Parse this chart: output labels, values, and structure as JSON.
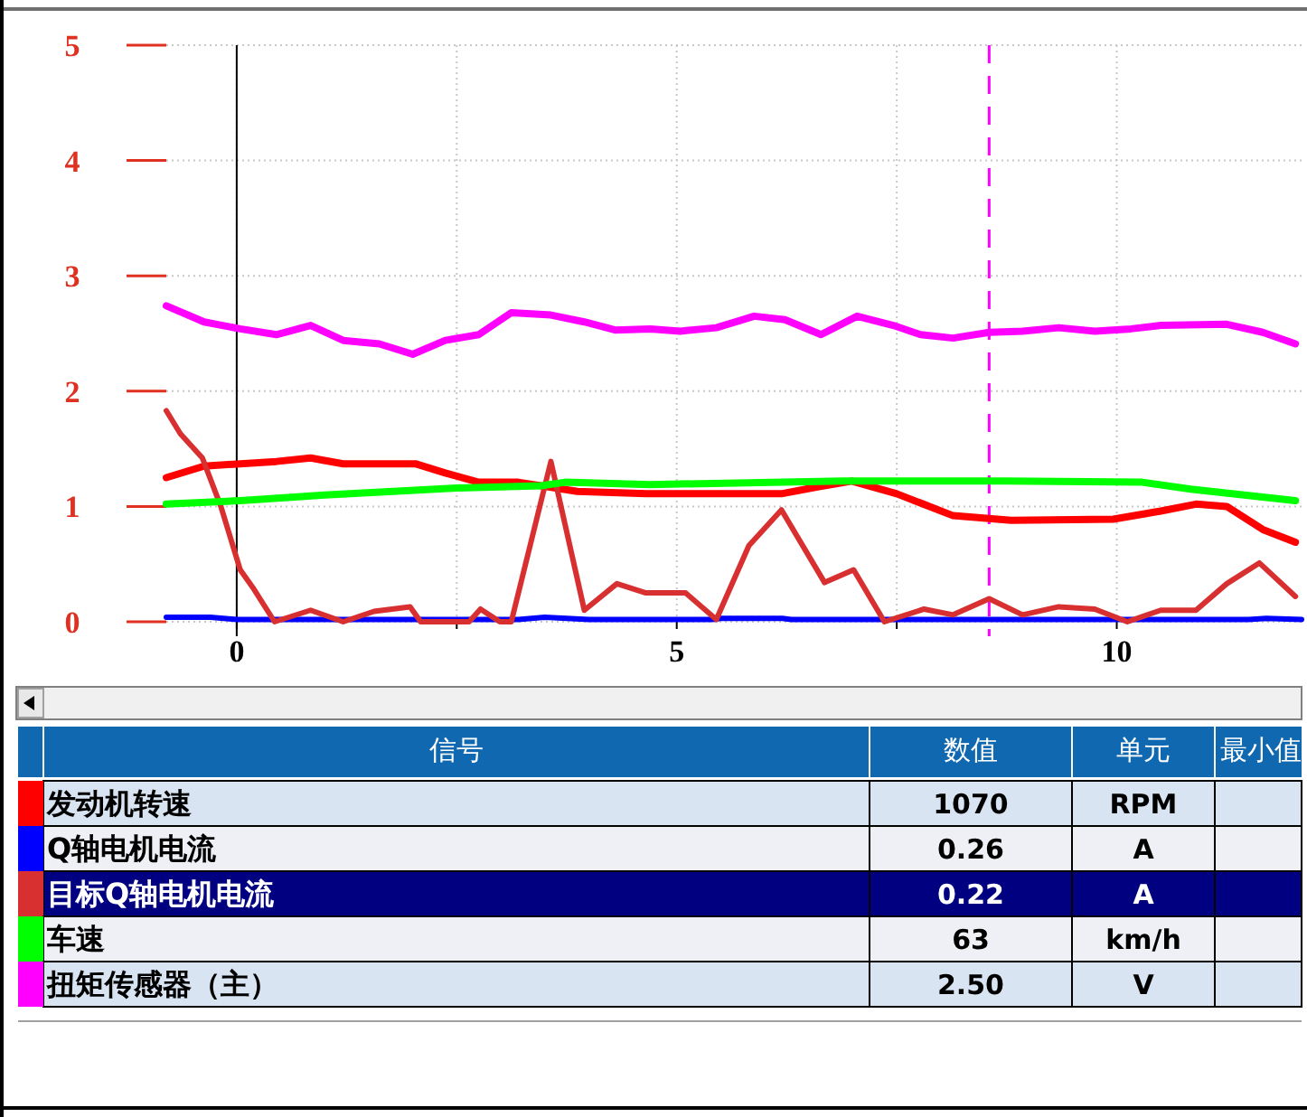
{
  "chart_data": {
    "type": "line",
    "legend_title": "信号",
    "legend": "bottom",
    "grid": true,
    "line_style": "solid",
    "marker": "none",
    "xlim": [
      -0.8,
      12.1
    ],
    "ylim": [
      0,
      5
    ],
    "xticks": [
      0,
      {
        "value": 2.5,
        "label": null
      },
      5,
      {
        "value": 7.5,
        "label": null
      },
      10
    ],
    "yticks": [
      0,
      1,
      2,
      3,
      4,
      5
    ],
    "ref_lines": [
      {
        "axis": "x",
        "value": 0,
        "color": "#000000",
        "line_style": "solid"
      },
      {
        "axis": "x",
        "value": 8.55,
        "color": "#ff00ff",
        "line_style": "dashed"
      }
    ],
    "annotations": [
      "数值",
      "单元",
      "最小值",
      "1070",
      "RPM",
      "0.26",
      "A",
      "0.22",
      "A",
      "63",
      "km/h",
      "2.50",
      "V"
    ],
    "series": [
      {
        "name": "发动机转速",
        "color": "#ff0000",
        "x": [
          -0.8,
          -0.37,
          0.04,
          0.45,
          0.84,
          1.21,
          2.03,
          2.37,
          2.75,
          3.2,
          3.87,
          4.65,
          6.19,
          6.6,
          6.99,
          7.5,
          8.14,
          8.8,
          9.96,
          10.5,
          10.9,
          11.25,
          11.66,
          12.03
        ],
        "values": [
          1.25,
          1.35,
          1.37,
          1.39,
          1.42,
          1.37,
          1.37,
          1.29,
          1.21,
          1.21,
          1.13,
          1.11,
          1.11,
          1.17,
          1.22,
          1.11,
          0.92,
          0.88,
          0.89,
          0.96,
          1.02,
          1.0,
          0.8,
          0.69
        ]
      },
      {
        "name": "Q轴电机电流",
        "color": "#0000ff",
        "x": [
          -0.8,
          -0.3,
          0,
          3.2,
          3.5,
          4.0,
          5.4,
          5.5,
          6.2,
          6.3,
          11.5,
          11.7,
          12.1
        ],
        "values": [
          0.04,
          0.04,
          0.02,
          0.02,
          0.04,
          0.02,
          0.02,
          0.03,
          0.03,
          0.02,
          0.02,
          0.03,
          0.02
        ]
      },
      {
        "name": "目标Q轴电机电流",
        "color": "#d83030",
        "x": [
          -0.8,
          -0.64,
          -0.39,
          -0.18,
          0.04,
          0.18,
          0.43,
          0.84,
          1.21,
          1.56,
          1.97,
          2.09,
          2.64,
          2.77,
          2.99,
          3.12,
          3.57,
          3.95,
          4.32,
          4.65,
          5.1,
          5.45,
          5.82,
          6.19,
          6.68,
          7.01,
          7.36,
          7.81,
          8.14,
          8.55,
          8.93,
          9.34,
          9.75,
          10.12,
          10.5,
          10.9,
          11.25,
          11.62,
          12.03
        ],
        "values": [
          1.83,
          1.63,
          1.42,
          1.0,
          0.45,
          0.3,
          0,
          0.1,
          0,
          0.09,
          0.13,
          0,
          0,
          0.11,
          0,
          0,
          1.39,
          0.1,
          0.33,
          0.25,
          0.25,
          0.02,
          0.66,
          0.97,
          0.34,
          0.45,
          0,
          0.11,
          0.06,
          0.2,
          0.06,
          0.13,
          0.11,
          0,
          0.1,
          0.1,
          0.33,
          0.51,
          0.22
        ]
      },
      {
        "name": "车速",
        "color": "#00ff00",
        "x": [
          -0.8,
          0.04,
          1.0,
          2.5,
          3.46,
          3.73,
          4.7,
          6.89,
          8.73,
          10.29,
          10.84,
          12.03
        ],
        "values": [
          1.02,
          1.05,
          1.1,
          1.16,
          1.18,
          1.21,
          1.19,
          1.22,
          1.22,
          1.21,
          1.15,
          1.05
        ]
      },
      {
        "name": "扭矩传感器（主）",
        "color": "#ff00ff",
        "x": [
          -0.8,
          -0.37,
          0.04,
          0.45,
          0.84,
          1.21,
          1.62,
          2.0,
          2.37,
          2.75,
          3.12,
          3.57,
          3.95,
          4.3,
          4.7,
          5.04,
          5.45,
          5.88,
          6.23,
          6.64,
          7.05,
          7.46,
          7.77,
          8.14,
          8.55,
          8.93,
          9.34,
          9.75,
          10.16,
          10.5,
          11.25,
          11.66,
          12.03
        ],
        "values": [
          2.74,
          2.6,
          2.54,
          2.49,
          2.57,
          2.44,
          2.41,
          2.32,
          2.44,
          2.49,
          2.68,
          2.66,
          2.6,
          2.53,
          2.54,
          2.52,
          2.55,
          2.65,
          2.62,
          2.49,
          2.65,
          2.57,
          2.49,
          2.46,
          2.51,
          2.52,
          2.55,
          2.52,
          2.54,
          2.57,
          2.58,
          2.51,
          2.41
        ]
      }
    ]
  }
}
